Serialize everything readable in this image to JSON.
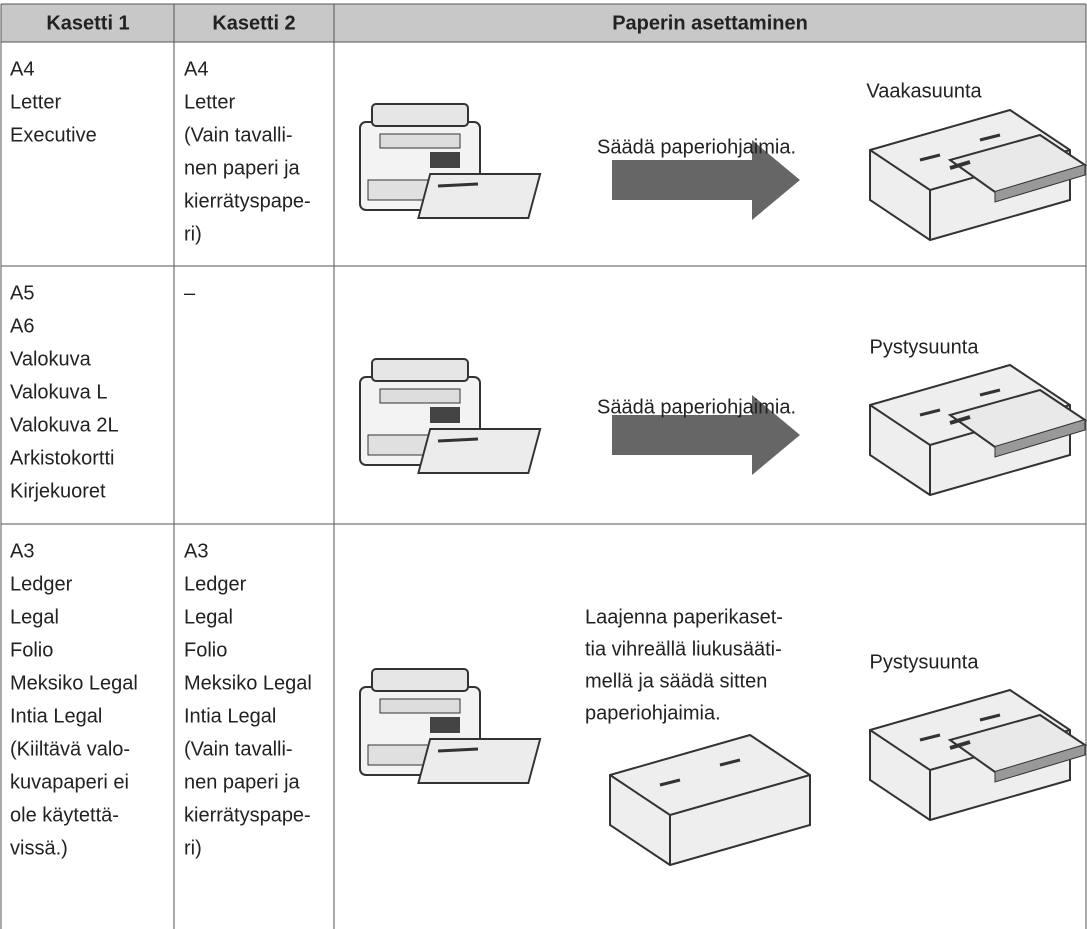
{
  "table": {
    "header": [
      "Kasetti 1",
      "Kasetti 2",
      "Paperin asettaminen"
    ],
    "rows": [
      {
        "tray1": [
          "A4",
          "Letter",
          "Executive"
        ],
        "tray2": [
          "A4",
          "Letter",
          "(Vain tavalli-",
          "nen paperi ja",
          "kierrätyspape-",
          "ri)"
        ],
        "instruction": [
          "Säädä paperiohjaimia."
        ],
        "orientation": "Vaakasuunta"
      },
      {
        "tray1": [
          "A5",
          "A6",
          "Valokuva",
          "Valokuva L",
          "Valokuva 2L",
          "Arkistokortti",
          "Kirjekuoret"
        ],
        "tray2": [
          "–"
        ],
        "instruction": [
          "Säädä paperiohjaimia."
        ],
        "orientation": "Pystysuunta"
      },
      {
        "tray1": [
          "A3",
          "Ledger",
          "Legal",
          "Folio",
          "Meksiko Legal",
          "Intia Legal",
          "(Kiiltävä valo-",
          "kuvapaperi ei",
          "ole käytettä-",
          "vissä.)"
        ],
        "tray2": [
          "A3",
          "Ledger",
          "Legal",
          "Folio",
          "Meksiko Legal",
          "Intia Legal",
          "(Vain tavalli-",
          "nen paperi ja",
          "kierrätyspape-",
          "ri)"
        ],
        "instruction": [
          "Laajenna paperikaset-",
          "tia vihreällä liukusääti-",
          "mellä ja säädä sitten",
          "paperiohjaimia."
        ],
        "orientation": "Pystysuunta"
      }
    ]
  }
}
